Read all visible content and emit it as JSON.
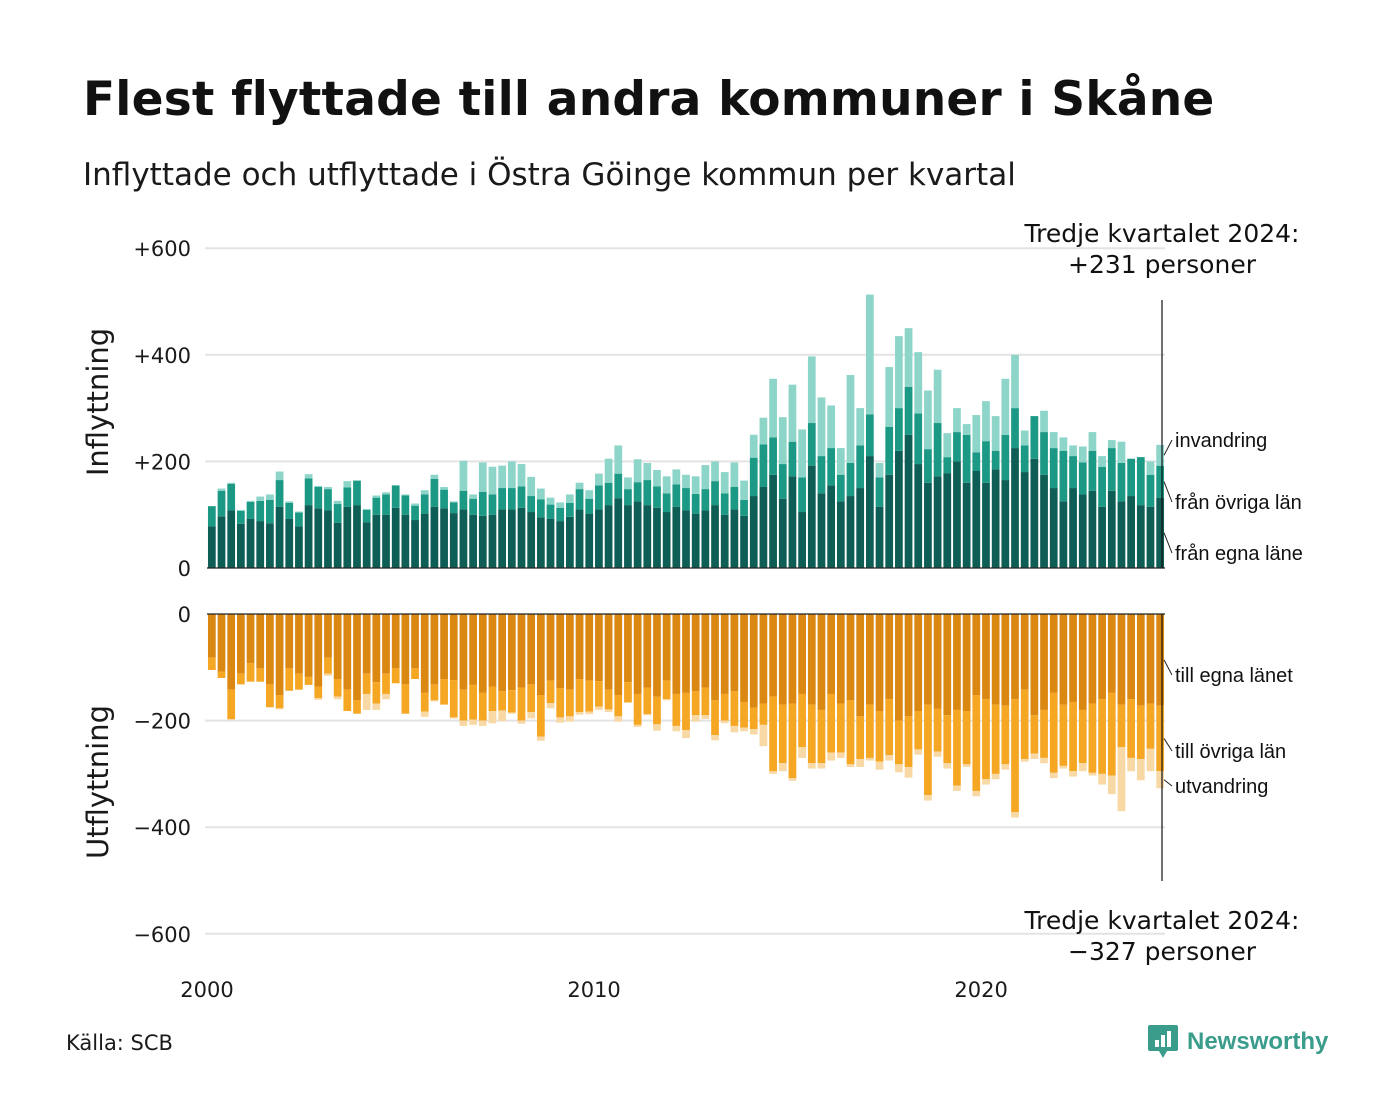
{
  "title": "Flest flyttade till andra kommuner i Skåne",
  "subtitle": "Inflyttade och utflyttade i Östra Göinge kommun per kvartal",
  "source": "Källa: SCB",
  "brand": {
    "name": "Newsworthy",
    "icon": "newsworthy-logo-icon"
  },
  "colors": {
    "in_own": "#0e5e56",
    "in_other": "#1b9985",
    "in_immig": "#8ed5c9",
    "out_own": "#db8812",
    "out_other": "#f5a623",
    "out_emig": "#f8d9a6",
    "grid": "#e3e3e3"
  },
  "annotations": {
    "top_line1": "Tredje kvartalet 2024:",
    "top_line2": "+231 personer",
    "bottom_line1": "Tredje kvartalet 2024:",
    "bottom_line2": "−327 personer"
  },
  "chart_data": {
    "type": "bar",
    "stacked": true,
    "x_ticks": [
      "2000",
      "2010",
      "2020"
    ],
    "x_tick_years": [
      2000,
      2010,
      2020
    ],
    "quarters_start": "2000 Q1",
    "quarters_end": "2024 Q3",
    "panels": [
      {
        "id": "in",
        "ylabel": "Inflyttning",
        "ylim": [
          0,
          600
        ],
        "y_ticks": [
          {
            "value": 600,
            "label": "+600"
          },
          {
            "value": 400,
            "label": "+400"
          },
          {
            "value": 200,
            "label": "+200"
          },
          {
            "value": 0,
            "label": "0"
          }
        ],
        "series": [
          {
            "name": "från egna läne",
            "color": "#0e5e56",
            "values": [
              78,
              97,
              108,
              83,
              92,
              88,
              84,
              115,
              92,
              78,
              118,
              112,
              108,
              85,
              115,
              118,
              86,
              100,
              100,
              113,
              100,
              90,
              102,
              115,
              112,
              103,
              110,
              100,
              98,
              100,
              110,
              110,
              113,
              105,
              95,
              92,
              88,
              96,
              110,
              102,
              110,
              118,
              131,
              118,
              125,
              118,
              113,
              105,
              115,
              108,
              102,
              108,
              118,
              100,
              110,
              98,
              135,
              152,
              175,
              130,
              172,
              105,
              192,
              140,
              155,
              125,
              135,
              150,
              210,
              115,
              175,
              220,
              250,
              195,
              160,
              172,
              178,
              200,
              160,
              182,
              160,
              185,
              165,
              225,
              180,
              205,
              175,
              150,
              125,
              150,
              138,
              145,
              115,
              145,
              125,
              135,
              118,
              115,
              132
            ]
          },
          {
            "name": "från övriga län",
            "color": "#1b9985",
            "values": [
              38,
              48,
              50,
              24,
              32,
              38,
              44,
              50,
              30,
              26,
              50,
              40,
              40,
              35,
              36,
              46,
              23,
              32,
              38,
              42,
              36,
              27,
              36,
              52,
              35,
              20,
              35,
              30,
              45,
              38,
              40,
              40,
              40,
              30,
              34,
              27,
              25,
              26,
              38,
              28,
              45,
              42,
              46,
              30,
              36,
              47,
              40,
              35,
              42,
              42,
              37,
              40,
              45,
              40,
              42,
              30,
              72,
              80,
              70,
              65,
              65,
              65,
              80,
              70,
              70,
              50,
              62,
              80,
              78,
              55,
              90,
              80,
              90,
              95,
              63,
              100,
              30,
              55,
              90,
              35,
              78,
              35,
              85,
              75,
              50,
              80,
              80,
              75,
              95,
              60,
              60,
              75,
              75,
              80,
              72,
              70,
              90,
              60,
              60
            ]
          },
          {
            "name": "invandring",
            "color": "#8ed5c9",
            "values": [
              0,
              4,
              2,
              2,
              2,
              8,
              10,
              16,
              3,
              2,
              8,
              2,
              4,
              6,
              12,
              0,
              2,
              4,
              4,
              0,
              2,
              4,
              8,
              8,
              5,
              2,
              56,
              8,
              55,
              52,
              42,
              50,
              42,
              36,
              20,
              13,
              10,
              16,
              12,
              16,
              22,
              45,
              53,
              22,
              43,
              32,
              31,
              32,
              28,
              25,
              33,
              45,
              37,
              40,
              46,
              36,
              43,
              50,
              110,
              88,
              107,
              90,
              125,
              110,
              80,
              50,
              165,
              70,
              225,
              27,
              112,
              135,
              110,
              115,
              110,
              100,
              45,
              45,
              20,
              70,
              75,
              65,
              105,
              100,
              28,
              0,
              40,
              30,
              25,
              20,
              30,
              35,
              20,
              15,
              40,
              0,
              0,
              25,
              39
            ]
          }
        ]
      },
      {
        "id": "out",
        "ylabel": "Utflyttning",
        "ylim": [
          -600,
          0
        ],
        "y_ticks": [
          {
            "value": 0,
            "label": "0"
          },
          {
            "value": -200,
            "label": "−200"
          },
          {
            "value": -400,
            "label": "−400"
          },
          {
            "value": -600,
            "label": "−600"
          }
        ],
        "series": [
          {
            "name": "till egna länet",
            "color": "#db8812",
            "values": [
              -82,
              -108,
              -142,
              -112,
              -92,
              -102,
              -132,
              -152,
              -102,
              -112,
              -118,
              -136,
              -82,
              -122,
              -142,
              -162,
              -112,
              -128,
              -112,
              -102,
              -132,
              -102,
              -148,
              -132,
              -122,
              -124,
              -142,
              -133,
              -148,
              -136,
              -145,
              -143,
              -138,
              -132,
              -152,
              -125,
              -139,
              -142,
              -122,
              -125,
              -126,
              -142,
              -152,
              -128,
              -150,
              -138,
              -155,
              -125,
              -150,
              -148,
              -145,
              -138,
              -162,
              -150,
              -145,
              -165,
              -176,
              -168,
              -155,
              -170,
              -168,
              -150,
              -170,
              -180,
              -150,
              -168,
              -162,
              -192,
              -170,
              -182,
              -160,
              -200,
              -192,
              -182,
              -170,
              -178,
              -190,
              -180,
              -182,
              -152,
              -160,
              -170,
              -172,
              -160,
              -142,
              -190,
              -180,
              -148,
              -170,
              -165,
              -180,
              -168,
              -160,
              -148,
              -170,
              -160,
              -172,
              -168,
              -172
            ]
          },
          {
            "name": "till övriga län",
            "color": "#f5a623",
            "values": [
              -23,
              -12,
              -55,
              -20,
              -35,
              -25,
              -43,
              -25,
              -42,
              -30,
              -15,
              -22,
              -30,
              -33,
              -40,
              -25,
              -38,
              -40,
              -38,
              -28,
              -55,
              -20,
              -35,
              -30,
              -48,
              -70,
              -58,
              -65,
              -52,
              -46,
              -36,
              -42,
              -62,
              -52,
              -78,
              -42,
              -55,
              -50,
              -62,
              -58,
              -48,
              -37,
              -40,
              -38,
              -58,
              -50,
              -52,
              -35,
              -60,
              -70,
              -45,
              -52,
              -65,
              -50,
              -65,
              -48,
              -40,
              -40,
              -140,
              -110,
              -140,
              -100,
              -110,
              -100,
              -110,
              -92,
              -120,
              -80,
              -100,
              -95,
              -105,
              -82,
              -95,
              -72,
              -170,
              -80,
              -90,
              -142,
              -100,
              -180,
              -150,
              -130,
              -110,
              -212,
              -130,
              -72,
              -90,
              -150,
              -115,
              -130,
              -100,
              -130,
              -140,
              -155,
              -80,
              -110,
              -100,
              -85,
              -123
            ]
          },
          {
            "name": "utvandring",
            "color": "#f8d9a6",
            "values": [
              0,
              0,
              -2,
              0,
              0,
              0,
              0,
              -2,
              0,
              0,
              0,
              -3,
              -4,
              -5,
              0,
              0,
              -30,
              -12,
              -10,
              0,
              0,
              0,
              -10,
              -2,
              0,
              -2,
              -10,
              -10,
              -10,
              -23,
              -20,
              -2,
              -6,
              -12,
              -8,
              -10,
              -10,
              -10,
              -5,
              -5,
              -6,
              -5,
              -10,
              0,
              -4,
              -2,
              -12,
              -2,
              -10,
              -15,
              -12,
              -7,
              -10,
              -5,
              -12,
              -7,
              -10,
              -40,
              -5,
              -15,
              -5,
              -20,
              -10,
              -10,
              -15,
              -10,
              -5,
              -15,
              -5,
              -15,
              -10,
              -15,
              -20,
              -10,
              -10,
              -10,
              -10,
              -10,
              -5,
              -10,
              -10,
              -10,
              -10,
              -10,
              -5,
              -10,
              -10,
              -10,
              -5,
              -10,
              -15,
              -5,
              -20,
              -35,
              -120,
              -25,
              -40,
              -42,
              -32
            ]
          }
        ]
      }
    ],
    "end_labels_in": [
      "invandring",
      "från övriga län",
      "från egna läne"
    ],
    "end_labels_out": [
      "till egna länet",
      "till övriga län",
      "utvandring"
    ],
    "grid": true,
    "legend": "right, direct labels at end of series"
  }
}
